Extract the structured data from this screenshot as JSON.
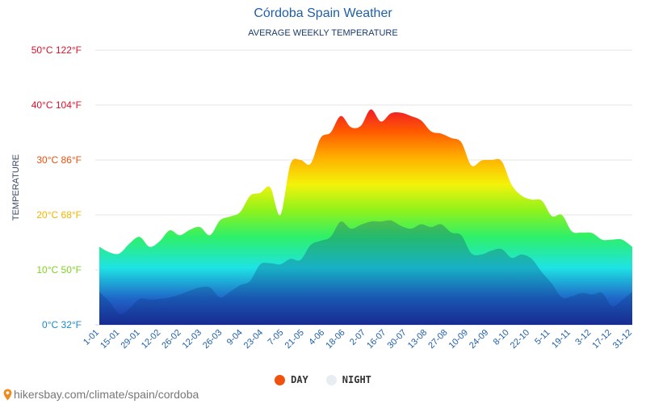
{
  "chart_data": {
    "type": "area",
    "title": "Córdoba Spain Weather",
    "subtitle": "AVERAGE WEEKLY TEMPERATURE",
    "ylabel": "TEMPERATURE",
    "ylim": [
      0,
      50
    ],
    "grid": true,
    "legend_placement": "bottom",
    "y_ticks": [
      {
        "value": 0,
        "label": "0°C 32°F",
        "color": "#1e88c9"
      },
      {
        "value": 10,
        "label": "10°C 50°F",
        "color": "#7ed321"
      },
      {
        "value": 20,
        "label": "20°C 68°F",
        "color": "#f5b400"
      },
      {
        "value": 30,
        "label": "30°C 86°F",
        "color": "#e8520e"
      },
      {
        "value": 40,
        "label": "40°C 104°F",
        "color": "#d9122b"
      },
      {
        "value": 50,
        "label": "50°C 122°F",
        "color": "#d9122b"
      }
    ],
    "x_tick_labels": [
      "1-01",
      "15-01",
      "29-01",
      "12-02",
      "26-02",
      "12-03",
      "26-03",
      "9-04",
      "23-04",
      "7-05",
      "21-05",
      "4-06",
      "18-06",
      "2-07",
      "16-07",
      "30-07",
      "13-08",
      "27-08",
      "10-09",
      "24-09",
      "8-10",
      "22-10",
      "5-11",
      "19-11",
      "3-12",
      "17-12",
      "31-12"
    ],
    "series": [
      {
        "name": "DAY",
        "color": "#f0520e",
        "values": [
          14.2,
          13.2,
          13.0,
          14.8,
          16.0,
          14.2,
          15.2,
          17.2,
          16.3,
          17.3,
          17.8,
          16.3,
          19.0,
          19.7,
          20.5,
          23.5,
          24.0,
          25.0,
          20.0,
          29.2,
          30.0,
          29.3,
          34.0,
          35.0,
          38.0,
          36.0,
          36.2,
          39.2,
          37.0,
          38.5,
          38.6,
          38.0,
          37.2,
          35.2,
          34.8,
          34.0,
          33.2,
          29.0,
          29.9,
          30.0,
          29.8,
          25.5,
          23.5,
          22.8,
          22.6,
          19.8,
          20.0,
          17.0,
          16.8,
          16.7,
          15.5,
          15.5,
          15.5,
          14.2
        ]
      },
      {
        "name": "NIGHT",
        "color": "#e7edf3",
        "values": [
          6.0,
          4.2,
          2.0,
          3.0,
          4.7,
          4.6,
          4.7,
          5.0,
          5.5,
          6.2,
          6.8,
          6.8,
          5.0,
          6.0,
          7.2,
          8.0,
          11.0,
          11.2,
          11.0,
          12.0,
          11.8,
          14.5,
          15.3,
          16.0,
          18.8,
          17.5,
          18.2,
          18.8,
          18.8,
          19.0,
          18.0,
          17.5,
          18.3,
          17.8,
          18.3,
          16.8,
          16.3,
          13.0,
          12.8,
          13.5,
          13.8,
          12.2,
          12.8,
          12.0,
          9.6,
          7.5,
          5.0,
          5.2,
          5.8,
          5.5,
          5.8,
          3.4,
          4.5,
          6.0
        ]
      }
    ]
  },
  "legend": {
    "day_label": "DAY",
    "night_label": "NIGHT"
  },
  "source_text": "hikersbay.com/climate/spain/cordoba"
}
